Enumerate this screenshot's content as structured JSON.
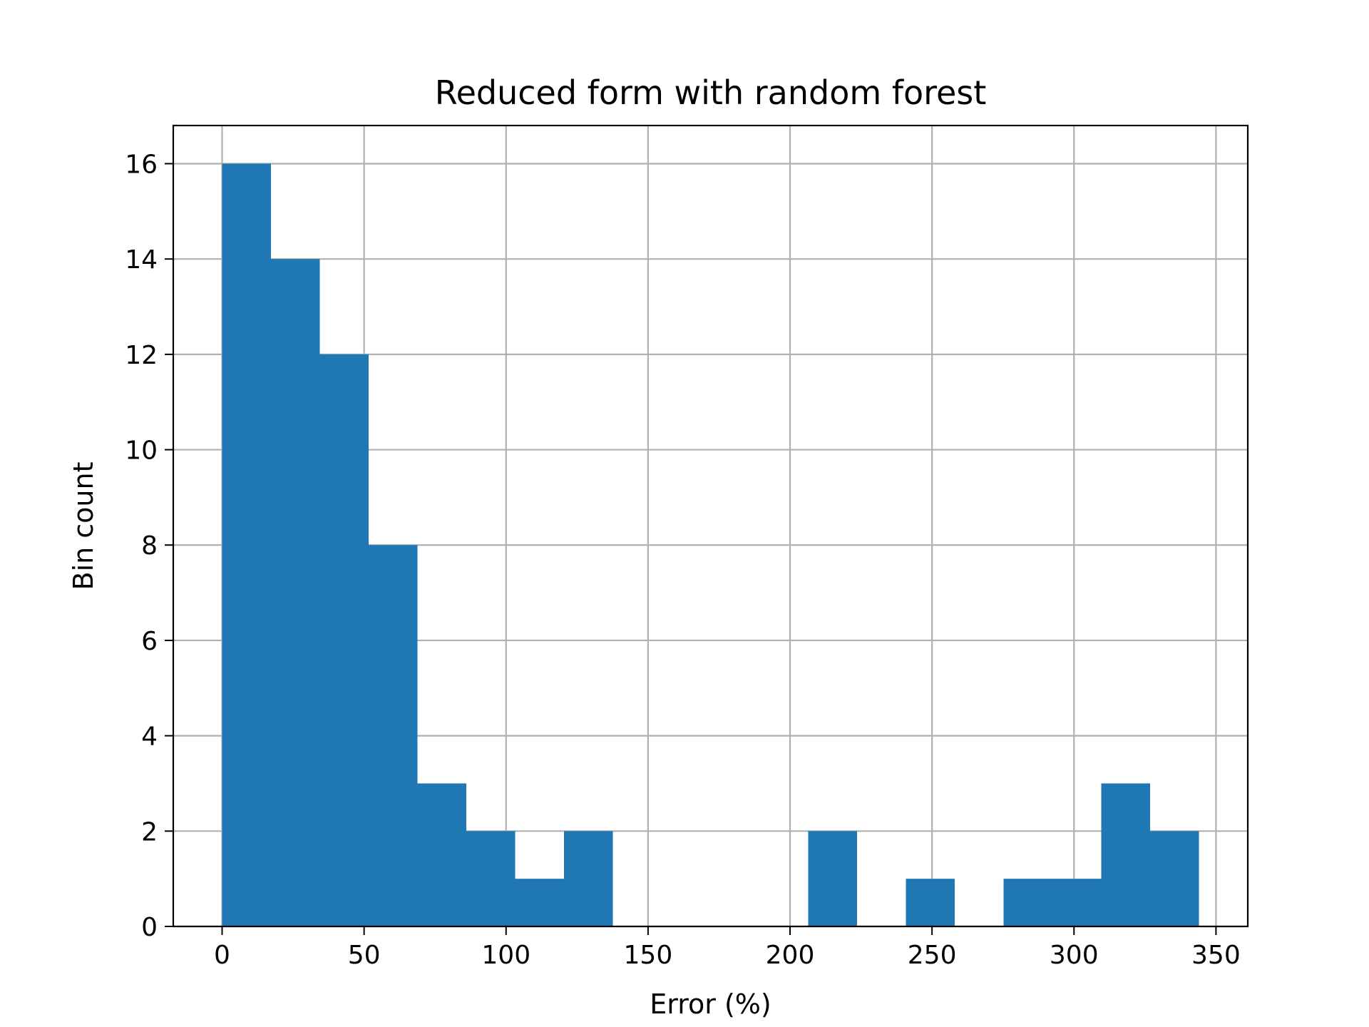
{
  "chart_data": {
    "type": "bar",
    "title": "Reduced form with random forest",
    "xlabel": "Error (%)",
    "ylabel": "Bin count",
    "xlim": [
      -17.2,
      361.2
    ],
    "ylim": [
      0,
      16.8
    ],
    "xticks": [
      0,
      50,
      100,
      150,
      200,
      250,
      300,
      350
    ],
    "yticks": [
      0,
      2,
      4,
      6,
      8,
      10,
      12,
      14,
      16
    ],
    "grid": true,
    "bar_color": "#1f77b4",
    "bin_edges": [
      0,
      17.2,
      34.4,
      51.6,
      68.8,
      86.0,
      103.2,
      120.4,
      137.6,
      154.8,
      172.0,
      189.2,
      206.4,
      223.6,
      240.8,
      258.0,
      275.2,
      292.4,
      309.6,
      326.8,
      344.0
    ],
    "values": [
      16,
      14,
      12,
      8,
      3,
      2,
      1,
      2,
      0,
      0,
      0,
      0,
      2,
      0,
      1,
      0,
      1,
      1,
      3,
      2
    ]
  }
}
